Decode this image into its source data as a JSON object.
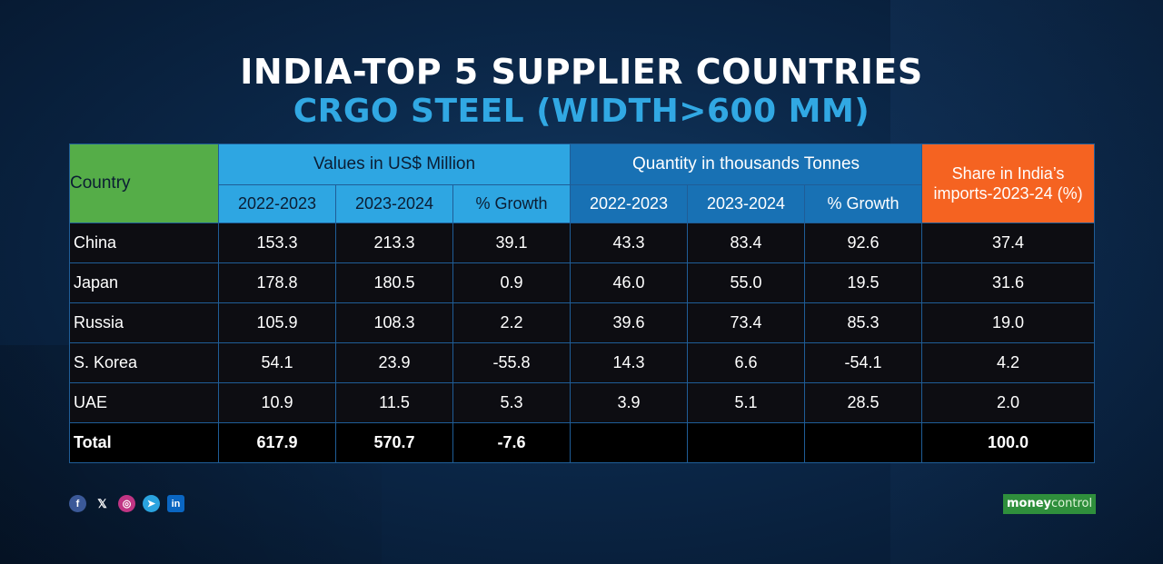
{
  "header": {
    "title": "INDIA-TOP 5 SUPPLIER COUNTRIES",
    "subtitle": "CRGO STEEL (WIDTH>600 MM)"
  },
  "table": {
    "country_label": "Country",
    "group_value_label": "Values in US$ Million",
    "group_quantity_label": "Quantity in thousands Tonnes",
    "share_label": "Share in India’s imports-2023-24 (%)",
    "sub_headers": {
      "v_2022": "2022-2023",
      "v_2023": "2023-2024",
      "v_growth": "% Growth",
      "q_2022": "2022-2023",
      "q_2023": "2023-2024",
      "q_growth": "% Growth"
    },
    "rows": [
      {
        "country": "China",
        "v2022": "153.3",
        "v2023": "213.3",
        "vgrowth": "39.1",
        "q2022": "43.3",
        "q2023": "83.4",
        "qgrowth": "92.6",
        "share": "37.4"
      },
      {
        "country": "Japan",
        "v2022": "178.8",
        "v2023": "180.5",
        "vgrowth": "0.9",
        "q2022": "46.0",
        "q2023": "55.0",
        "qgrowth": "19.5",
        "share": "31.6"
      },
      {
        "country": "Russia",
        "v2022": "105.9",
        "v2023": "108.3",
        "vgrowth": "2.2",
        "q2022": "39.6",
        "q2023": "73.4",
        "qgrowth": "85.3",
        "share": "19.0"
      },
      {
        "country": "S. Korea",
        "v2022": "54.1",
        "v2023": "23.9",
        "vgrowth": "-55.8",
        "q2022": "14.3",
        "q2023": "6.6",
        "qgrowth": "-54.1",
        "share": "4.2"
      },
      {
        "country": "UAE",
        "v2022": "10.9",
        "v2023": "11.5",
        "vgrowth": "5.3",
        "q2022": "3.9",
        "q2023": "5.1",
        "qgrowth": "28.5",
        "share": "2.0"
      }
    ],
    "total": {
      "country": "Total",
      "v2022": "617.9",
      "v2023": "570.7",
      "vgrowth": "-7.6",
      "q2022": "",
      "q2023": "",
      "qgrowth": "",
      "share": "100.0"
    }
  },
  "footer": {
    "social": [
      {
        "icon": "facebook-icon",
        "glyph": "f"
      },
      {
        "icon": "x-icon",
        "glyph": "𝕏"
      },
      {
        "icon": "instagram-icon",
        "glyph": "◎"
      },
      {
        "icon": "telegram-icon",
        "glyph": "➤"
      },
      {
        "icon": "linkedin-icon",
        "glyph": "in"
      }
    ],
    "logo_main": "money",
    "logo_accent": "control"
  },
  "colors": {
    "background": "#0b2748",
    "country_header": "#55ad48",
    "value_header": "#2ea6e2",
    "quantity_header": "#1871b4",
    "share_header": "#f56321",
    "subtitle": "#31a8e3"
  }
}
